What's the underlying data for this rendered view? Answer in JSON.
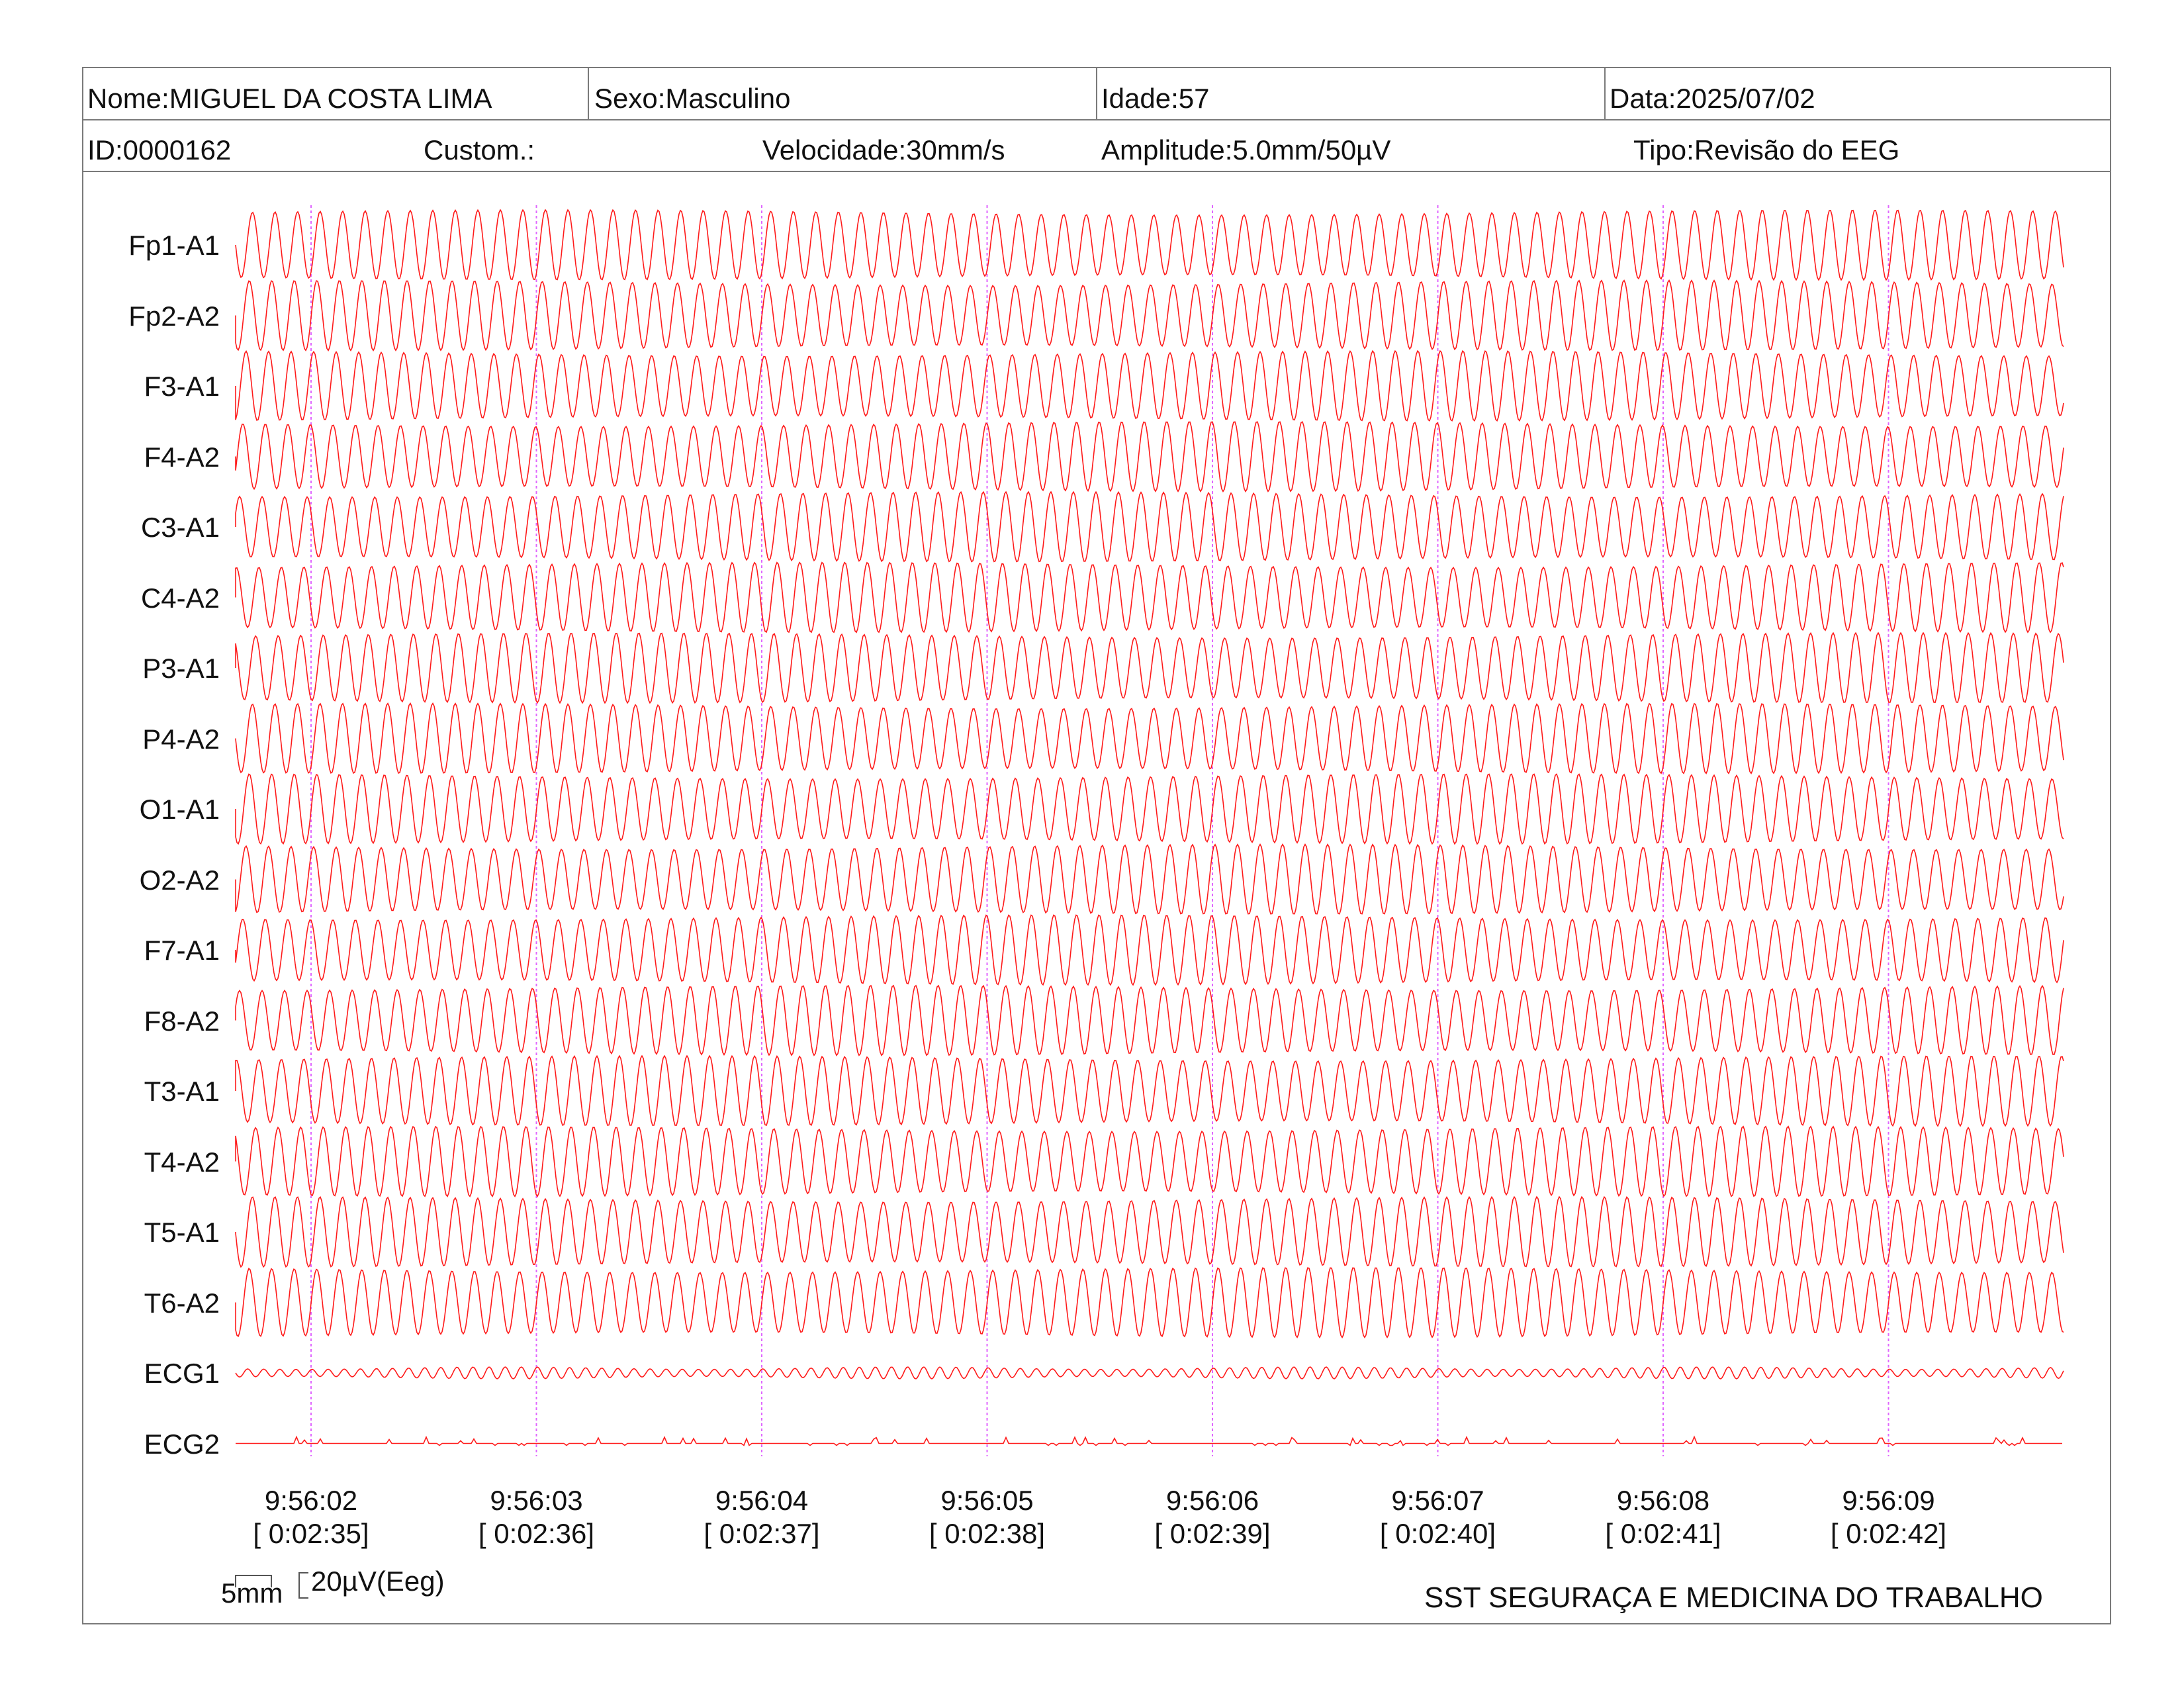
{
  "header": {
    "nome": "Nome:MIGUEL DA COSTA LIMA",
    "sexo": "Sexo:Masculino",
    "idade": "Idade:57",
    "data": "Data:2025/07/02",
    "id": "ID:0000162",
    "custom": "Custom.:",
    "velocidade": "Velocidade:30mm/s",
    "amplitude": "Amplitude:5.0mm/50µV",
    "tipo": "Tipo:Revisão do EEG"
  },
  "scale_bar": {
    "time_label": "5mm",
    "amp_label": "20µV(Eeg)"
  },
  "footer": {
    "organization": "SST SEGURAÇA E MEDICINA DO TRABALHO"
  },
  "colors": {
    "trace": "#ff1a1a",
    "marker": "#e066ff",
    "frame": "#7a7a7a"
  },
  "chart_data": {
    "type": "line",
    "channels": [
      "Fp1-A1",
      "Fp2-A2",
      "F3-A1",
      "F4-A2",
      "C3-A1",
      "C4-A2",
      "P3-A1",
      "P4-A2",
      "O1-A1",
      "O2-A2",
      "F7-A1",
      "F8-A2",
      "T3-A1",
      "T4-A2",
      "T5-A1",
      "T6-A2",
      "ECG1",
      "ECG2"
    ],
    "time_ticks": [
      {
        "clock": "9:56:02",
        "elapsed": "[ 0:02:35]"
      },
      {
        "clock": "9:56:03",
        "elapsed": "[ 0:02:36]"
      },
      {
        "clock": "9:56:04",
        "elapsed": "[ 0:02:37]"
      },
      {
        "clock": "9:56:05",
        "elapsed": "[ 0:02:38]"
      },
      {
        "clock": "9:56:06",
        "elapsed": "[ 0:02:39]"
      },
      {
        "clock": "9:56:07",
        "elapsed": "[ 0:02:40]"
      },
      {
        "clock": "9:56:08",
        "elapsed": "[ 0:02:41]"
      },
      {
        "clock": "9:56:09",
        "elapsed": "[ 0:02:42]"
      }
    ],
    "sweep_speed_mm_per_s": 30,
    "eeg_amplitude": "5.0mm/50µV",
    "eeg_dominant_frequency_hz": 10,
    "ecg1_dominant_frequency_hz": 14,
    "ecg2_appearance": "flat baseline with small sporadic spikes",
    "second_markers": "dotted vertical lines at each second"
  }
}
